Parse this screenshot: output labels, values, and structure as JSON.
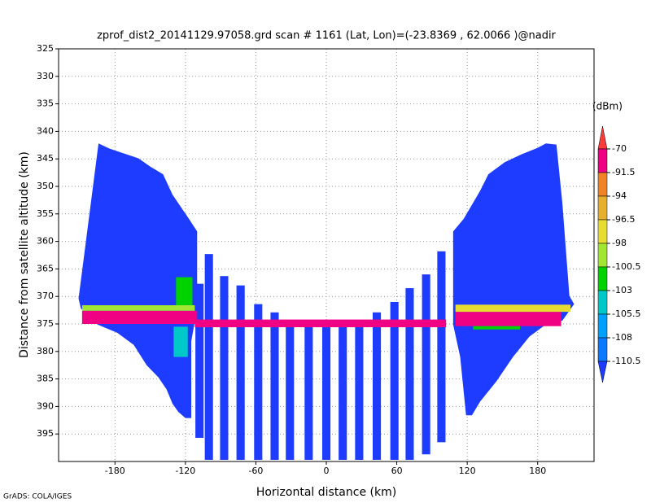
{
  "chart_data": {
    "type": "profile",
    "title": "zprof_dist2_20141129.97058.grd  scan # 1161  (Lat, Lon)=(-23.8369 , 62.0066 )@nadir",
    "x_label": "Horizontal distance (km)",
    "y_label": "Distance from satellite altitude (km)",
    "footer": "GrADS: COLA/IGES",
    "xlim": [
      -228,
      228
    ],
    "xticks": [
      -180,
      -120,
      -60,
      0,
      60,
      120,
      180
    ],
    "ylim": [
      325,
      400
    ],
    "y_inverted": true,
    "yticks": [
      325,
      330,
      335,
      340,
      345,
      350,
      355,
      360,
      365,
      370,
      375,
      380,
      385,
      390,
      395
    ],
    "grid": true,
    "field_value": -111,
    "left_fan": {
      "x": [
        -211,
        -194,
        -185,
        -174,
        -160,
        -150,
        -139,
        -131,
        -124,
        -117,
        -110,
        -110,
        -115,
        -115,
        -120,
        -126,
        -131,
        -136,
        -143,
        -153,
        -164,
        -178,
        -195,
        -209
      ],
      "y": [
        370.4,
        342.2,
        343.1,
        343.9,
        344.9,
        346.4,
        347.8,
        351.5,
        353.7,
        355.9,
        358.2,
        372.2,
        378.1,
        392.1,
        392.1,
        391.0,
        389.5,
        386.9,
        384.7,
        382.5,
        378.8,
        376.6,
        375.1,
        372.2
      ]
    },
    "right_fan": {
      "x": [
        108,
        117,
        131,
        138,
        152,
        166,
        180,
        187,
        196,
        201,
        207,
        211,
        201,
        187,
        173,
        159,
        145,
        131,
        124,
        119,
        114,
        108
      ],
      "y": [
        358.2,
        355.9,
        350.8,
        347.8,
        345.6,
        344.2,
        343.0,
        342.2,
        342.4,
        353.0,
        369.9,
        371.4,
        374.4,
        375.1,
        377.3,
        381.0,
        385.4,
        389.1,
        391.6,
        391.6,
        381.0,
        375.1
      ]
    },
    "stripes": {
      "x0": [
        -111.5,
        -103.5,
        -90.5,
        -76.5,
        -61.5,
        -47.5,
        -34.5,
        -18.5,
        -3.5,
        10.5,
        24.5,
        39.5,
        54.5,
        67.5,
        81.5,
        94.5
      ],
      "x1": [
        -104.5,
        -96.5,
        -83.5,
        -69.5,
        -54.5,
        -40.5,
        -27.5,
        -11.5,
        3.5,
        17.5,
        31.5,
        46.5,
        61.5,
        74.5,
        88.5,
        101.5
      ],
      "top": [
        367.7,
        362.3,
        366.3,
        368.0,
        371.4,
        372.9,
        374.4,
        375.4,
        375.4,
        375.4,
        374.8,
        372.9,
        371.0,
        368.5,
        366.0,
        361.8
      ],
      "bottom": [
        395.7,
        399.7,
        399.7,
        399.7,
        399.7,
        399.7,
        399.7,
        399.7,
        399.7,
        399.7,
        399.7,
        399.7,
        399.7,
        399.7,
        398.7,
        396.5
      ]
    },
    "features": [
      {
        "x": [
          -208,
          -110
        ],
        "y": [
          372.6,
          375.0
        ],
        "value": -85
      },
      {
        "x": [
          -208,
          -112
        ],
        "y": [
          371.6,
          372.6
        ],
        "value": -99
      },
      {
        "x": [
          -128,
          -114
        ],
        "y": [
          366.5,
          371.6
        ],
        "value": -101.5
      },
      {
        "x": [
          -130,
          -118
        ],
        "y": [
          375.5,
          381
        ],
        "value": -104
      },
      {
        "x": [
          -112,
          102
        ],
        "y": [
          374.2,
          375.6
        ],
        "value": -85
      },
      {
        "x": [
          110,
          200
        ],
        "y": [
          372.8,
          375.4
        ],
        "value": -85
      },
      {
        "x": [
          110,
          208
        ],
        "y": [
          371.5,
          372.8
        ],
        "value": -97
      },
      {
        "x": [
          125,
          165
        ],
        "y": [
          375.4,
          376
        ],
        "value": -101.5
      }
    ],
    "colorbar": {
      "unit": "(dBm)",
      "levels": [
        -70,
        -91.5,
        -94,
        -96.5,
        -98,
        -100.5,
        -103,
        -105.5,
        -108,
        -110.5
      ],
      "colors": [
        "#fa3c3c",
        "#f00082",
        "#f08228",
        "#e6af2d",
        "#e6dc32",
        "#a0e632",
        "#00d200",
        "#00c8c8",
        "#00a0ff",
        "#0a78ff",
        "#1e3cff"
      ]
    }
  }
}
